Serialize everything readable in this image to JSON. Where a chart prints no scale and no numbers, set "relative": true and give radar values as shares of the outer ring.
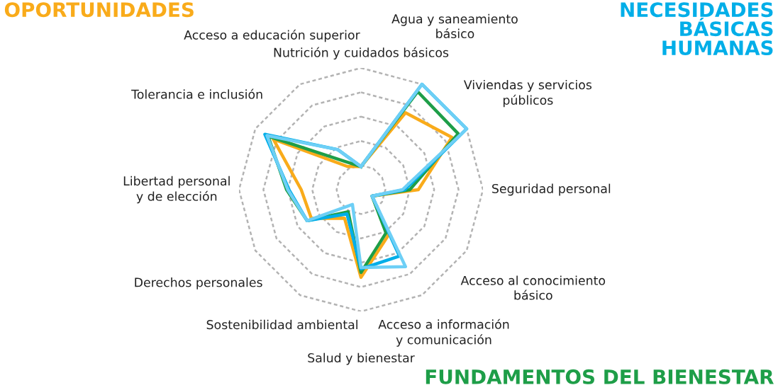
{
  "chart_data": {
    "type": "radar",
    "relative": true,
    "grid": true,
    "line_style": "solid",
    "categories": [
      "Nutrición y cuidados básicos",
      "Agua y saneamiento\nbásico",
      "Viviendas y servicios\npúblicos",
      "Seguridad personal",
      "Acceso al conocimiento básico",
      "Acceso a información y comunicación",
      "Salud y bienestar",
      "Sostenibilidad ambiental",
      "Derechos personales",
      "Libertad personal\ny de elección",
      "Tolerancia e inclusión",
      "Acceso a educación superior"
    ],
    "series": [
      {
        "color": "#f9ab1a",
        "values": [
          0.19,
          0.73,
          0.86,
          0.47,
          0.105,
          0.44,
          0.72,
          0.27,
          0.47,
          0.49,
          0.83,
          0.22
        ]
      },
      {
        "color": "#1e9e48",
        "values": [
          0.19,
          0.93,
          0.92,
          0.4,
          0.105,
          0.41,
          0.68,
          0.21,
          0.51,
          0.61,
          0.88,
          0.27
        ]
      },
      {
        "color": "#00aee8",
        "values": [
          0.19,
          1.0,
          1.0,
          0.36,
          0.105,
          0.63,
          0.65,
          0.23,
          0.51,
          0.59,
          0.91,
          0.38
        ]
      },
      {
        "color": "#6dcff6",
        "values": [
          0.19,
          1.0,
          1.0,
          0.34,
          0.105,
          0.73,
          0.64,
          0.14,
          0.51,
          0.6,
          0.89,
          0.38
        ]
      }
    ],
    "annotations": [
      "OPORTUNIDADES",
      "NECESIDADES\nBÁSICAS\nHUMANAS",
      "FUNDAMENTOS DEL BIENESTAR"
    ]
  }
}
